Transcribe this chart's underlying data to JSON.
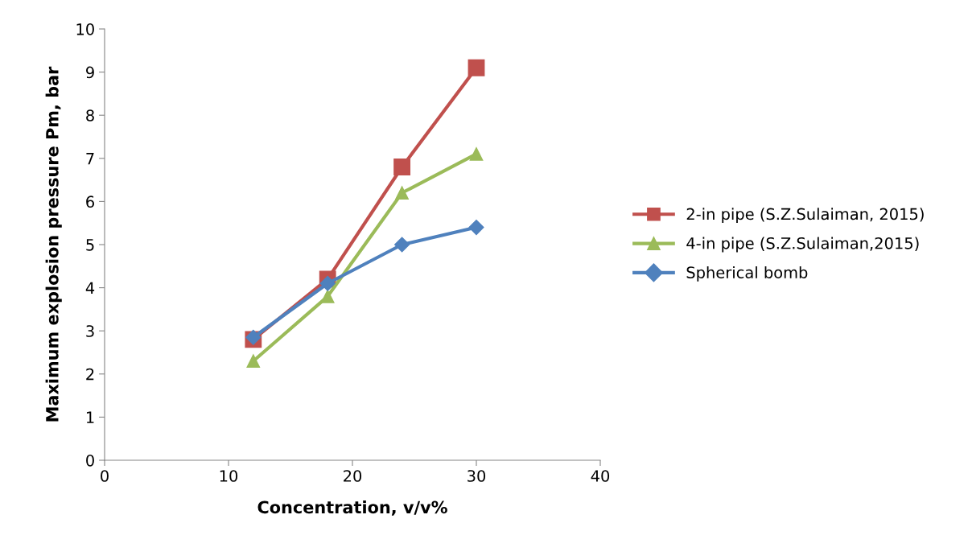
{
  "chart_data": {
    "type": "line",
    "xlabel": "Concentration, v/v%",
    "ylabel": "Maximum explosion pressure Pm, bar",
    "x": [
      12,
      18,
      24,
      30
    ],
    "series": [
      {
        "name": "2-in pipe (S.Z.Sulaiman, 2015)",
        "color": "#c0504d",
        "marker": "square",
        "values": [
          2.8,
          4.2,
          6.8,
          9.1
        ]
      },
      {
        "name": "4-in pipe (S.Z.Sulaiman,2015)",
        "color": "#9bbb59",
        "marker": "triangle",
        "values": [
          2.3,
          3.8,
          6.2,
          7.1
        ]
      },
      {
        "name": "Spherical bomb",
        "color": "#4f81bd",
        "marker": "diamond",
        "values": [
          2.85,
          4.1,
          5.0,
          5.4
        ]
      }
    ],
    "xlim": [
      0,
      40
    ],
    "xticks": [
      0,
      10,
      20,
      30,
      40
    ],
    "ylim": [
      0,
      10
    ],
    "yticks": [
      0,
      1,
      2,
      3,
      4,
      5,
      6,
      7,
      8,
      9,
      10
    ],
    "grid": false,
    "legend": "right",
    "line_style": "solid"
  }
}
